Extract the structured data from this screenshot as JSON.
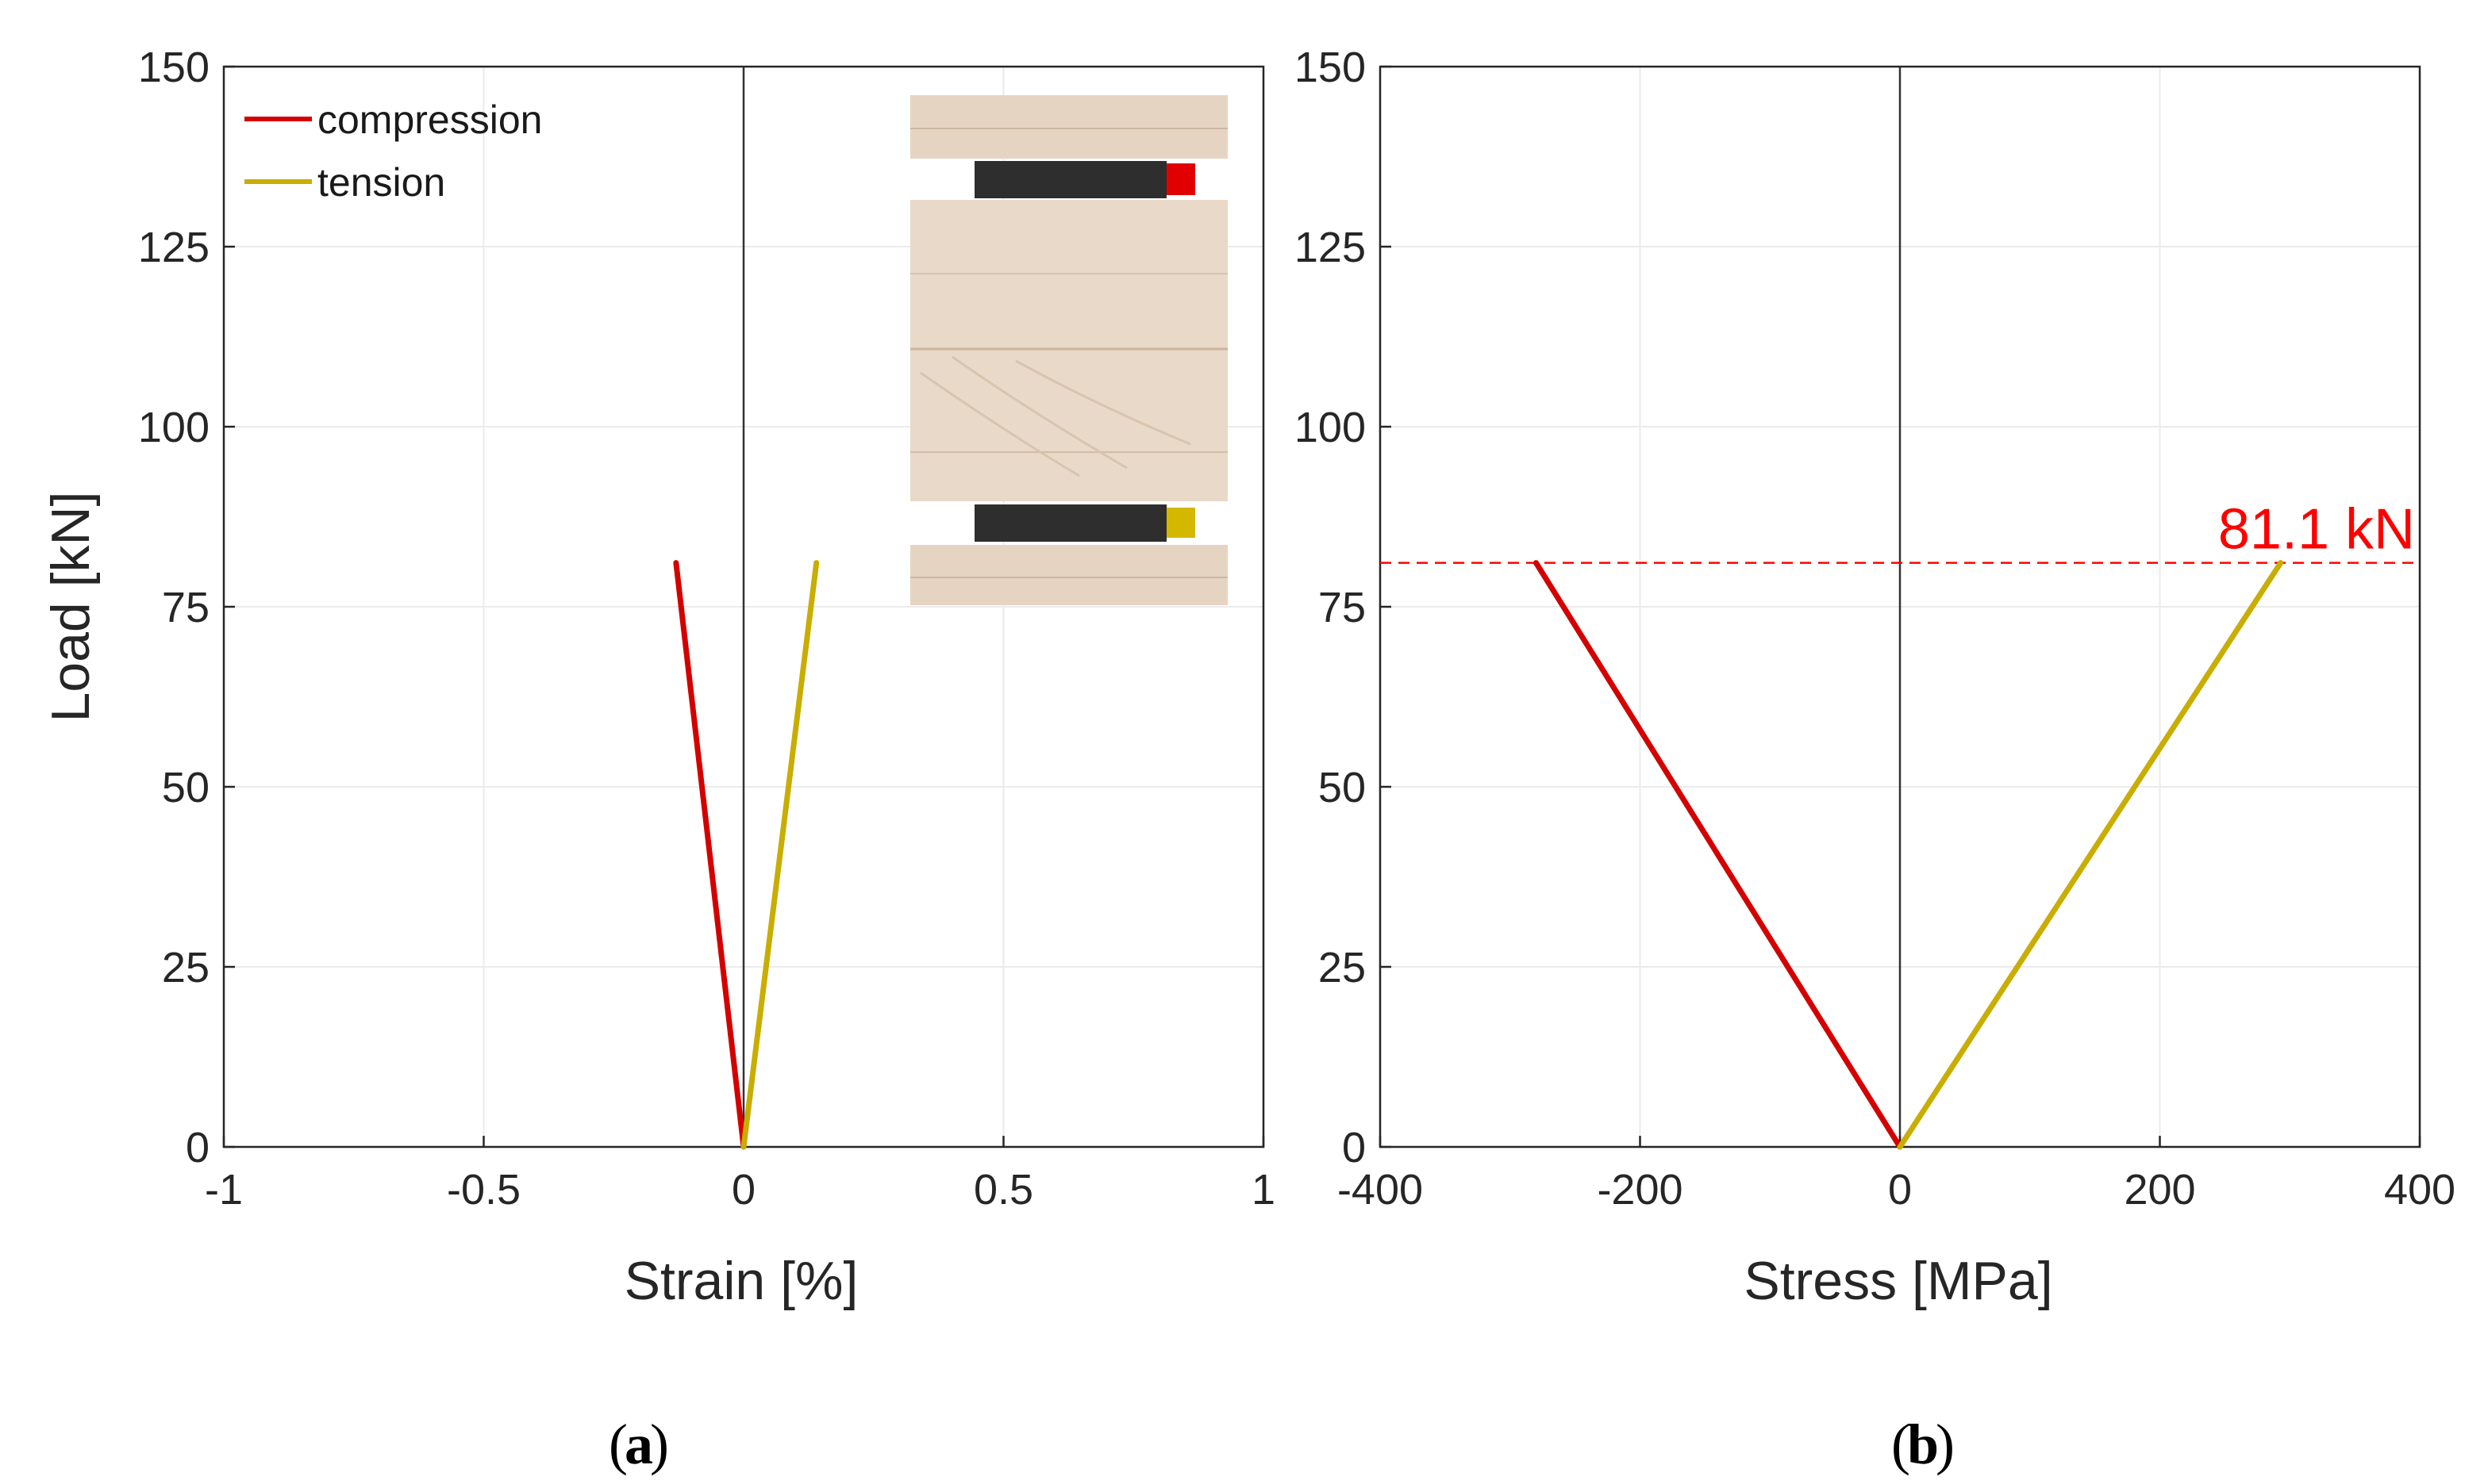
{
  "chart_data": [
    {
      "id": "a",
      "type": "line",
      "caption_letter": "a",
      "xlabel": "Strain [%]",
      "ylabel": "Load [kN]",
      "xlim": [
        -1,
        1
      ],
      "ylim": [
        0,
        150
      ],
      "x_ticks": [
        -1,
        -0.5,
        0,
        0.5,
        1
      ],
      "x_tick_labels": [
        "-1",
        "-0.5",
        "0",
        "0.5",
        "1"
      ],
      "y_ticks": [
        0,
        25,
        50,
        75,
        100,
        125,
        150
      ],
      "y_tick_labels": [
        "0",
        "25",
        "50",
        "75",
        "100",
        "125",
        "150"
      ],
      "grid": true,
      "legend": {
        "position": "top-left",
        "entries": [
          "compression",
          "tension"
        ]
      },
      "inset": "specimen cross-section photo with red (compression) and yellow (tension) gauge markers",
      "series": [
        {
          "name": "compression",
          "color": "#d40000",
          "x": [
            0,
            -0.13
          ],
          "y": [
            0,
            81.1
          ]
        },
        {
          "name": "tension",
          "color": "#c9ad00",
          "x": [
            0,
            0.14
          ],
          "y": [
            0,
            81.1
          ]
        }
      ]
    },
    {
      "id": "b",
      "type": "line",
      "caption_letter": "b",
      "xlabel": "Stress [MPa]",
      "ylabel": "",
      "xlim": [
        -400,
        400
      ],
      "ylim": [
        0,
        150
      ],
      "x_ticks": [
        -400,
        -200,
        0,
        200,
        400
      ],
      "x_tick_labels": [
        "-400",
        "-200",
        "0",
        "200",
        "400"
      ],
      "y_ticks": [
        0,
        25,
        50,
        75,
        100,
        125,
        150
      ],
      "y_tick_labels": [
        "0",
        "25",
        "50",
        "75",
        "100",
        "125",
        "150"
      ],
      "grid": true,
      "annotation": {
        "text": "81.1 kN",
        "value": 81.1,
        "color": "#ff0000"
      },
      "series": [
        {
          "name": "compression",
          "color": "#d40000",
          "x": [
            0,
            -280
          ],
          "y": [
            0,
            81.1
          ]
        },
        {
          "name": "tension",
          "color": "#c9ad00",
          "x": [
            0,
            293
          ],
          "y": [
            0,
            81.1
          ]
        }
      ]
    }
  ]
}
